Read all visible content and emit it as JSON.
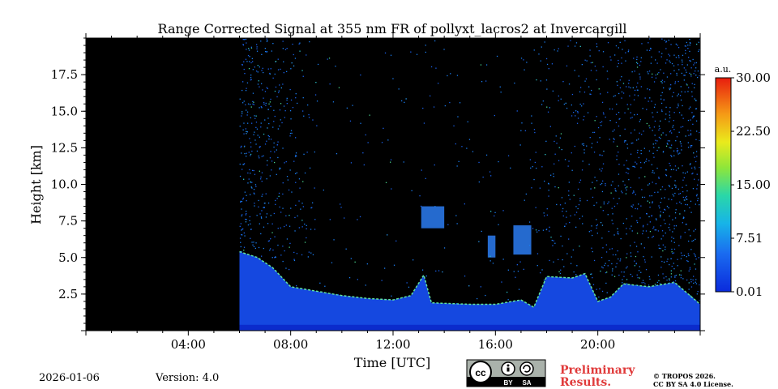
{
  "chart_data": {
    "type": "heatmap",
    "title": "Range Corrected Signal at 355 nm FR of pollyxt_lacros2 at Invercargill",
    "xlabel": "Time [UTC]",
    "ylabel": "Height [km]",
    "xlim": [
      0,
      24
    ],
    "ylim": [
      0,
      20
    ],
    "x_ticks": [
      {
        "value": 4,
        "label": "04:00"
      },
      {
        "value": 8,
        "label": "08:00"
      },
      {
        "value": 12,
        "label": "12:00"
      },
      {
        "value": 16,
        "label": "16:00"
      },
      {
        "value": 20,
        "label": "20:00"
      }
    ],
    "y_ticks": [
      {
        "value": 2.5,
        "label": "2.5"
      },
      {
        "value": 5.0,
        "label": "5.0"
      },
      {
        "value": 7.5,
        "label": "7.5"
      },
      {
        "value": 10.0,
        "label": "10.0"
      },
      {
        "value": 12.5,
        "label": "12.5"
      },
      {
        "value": 15.0,
        "label": "15.0"
      },
      {
        "value": 17.5,
        "label": "17.5"
      }
    ],
    "no_data_until_hour": 6,
    "colorbar": {
      "unit": "a.u.",
      "range": [
        0.01,
        30.0
      ],
      "ticks": [
        {
          "value": 0.01,
          "label": "0.01"
        },
        {
          "value": 7.51,
          "label": "7.51"
        },
        {
          "value": 15.0,
          "label": "15.00"
        },
        {
          "value": 22.5,
          "label": "22.50"
        },
        {
          "value": 30.0,
          "label": "30.00"
        }
      ]
    },
    "boundary_layer_top_km": [
      [
        6.0,
        5.4
      ],
      [
        6.7,
        5.0
      ],
      [
        7.3,
        4.3
      ],
      [
        8.0,
        3.0
      ],
      [
        9.0,
        2.7
      ],
      [
        10.0,
        2.4
      ],
      [
        11.0,
        2.2
      ],
      [
        12.0,
        2.1
      ],
      [
        12.7,
        2.4
      ],
      [
        13.2,
        3.8
      ],
      [
        13.5,
        1.9
      ],
      [
        15.0,
        1.8
      ],
      [
        16.0,
        1.8
      ],
      [
        17.0,
        2.1
      ],
      [
        17.5,
        1.6
      ],
      [
        18.0,
        3.7
      ],
      [
        19.0,
        3.6
      ],
      [
        19.5,
        3.9
      ],
      [
        20.0,
        2.0
      ],
      [
        20.5,
        2.3
      ],
      [
        21.0,
        3.2
      ],
      [
        22.0,
        3.0
      ],
      [
        23.0,
        3.3
      ],
      [
        24.0,
        1.8
      ]
    ],
    "cloud_features": [
      {
        "start": 13.1,
        "end": 14.0,
        "bottom_km": 7.0,
        "top_km": 8.5
      },
      {
        "start": 15.7,
        "end": 16.0,
        "bottom_km": 5.0,
        "top_km": 6.5
      },
      {
        "start": 16.7,
        "end": 17.4,
        "bottom_km": 5.2,
        "top_km": 7.2
      }
    ]
  },
  "footer": {
    "date": "2026-01-06",
    "version": "Version: 4.0",
    "preliminary_line1": "Preliminary",
    "preliminary_line2": "Results.",
    "copyright_line1": "© TROPOS 2026.",
    "copyright_line2": "CC BY SA 4.0 License.",
    "license_badge_text": [
      "BY",
      "SA"
    ]
  }
}
